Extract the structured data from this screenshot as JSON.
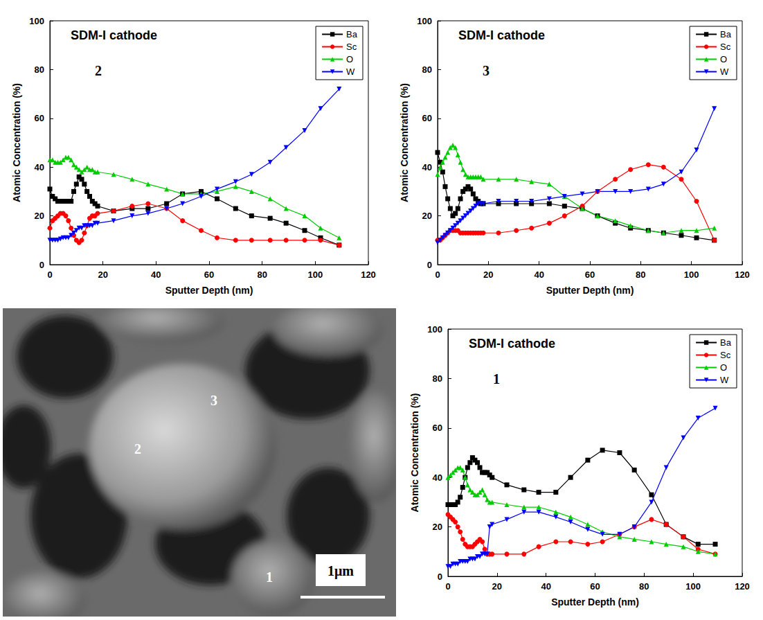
{
  "chart_data": [
    {
      "type": "line",
      "title": "SDM-I cathode",
      "annotation": "2",
      "x_label": "Sputter Depth (nm)",
      "y_label": "Atomic Concentration (%)",
      "xlim": [
        0,
        120
      ],
      "xticks": [
        0,
        20,
        40,
        60,
        80,
        100,
        120
      ],
      "ylim": [
        0,
        100
      ],
      "yticks": [
        0,
        20,
        40,
        60,
        80,
        100
      ],
      "grid": false,
      "legend": "upper right",
      "x": [
        0,
        1,
        2,
        3,
        4,
        5,
        6,
        7,
        8,
        9,
        10,
        11,
        12,
        13,
        14,
        15,
        16,
        17,
        18,
        24,
        31,
        37,
        44,
        50,
        57,
        63,
        70,
        76,
        83,
        89,
        96,
        102,
        109
      ],
      "series": [
        {
          "name": "Ba",
          "color": "#000000",
          "marker": "square",
          "values": [
            31,
            28,
            27,
            26,
            26,
            26,
            26,
            26,
            26,
            30,
            33,
            36,
            35,
            33,
            30,
            28,
            26,
            25,
            24,
            22,
            23,
            23,
            25,
            29,
            30,
            27,
            23,
            20,
            19,
            17,
            14,
            11,
            8
          ]
        },
        {
          "name": "Sc",
          "color": "#ff0000",
          "marker": "circle",
          "values": [
            15,
            18,
            19,
            20,
            21,
            21,
            20,
            18,
            15,
            12,
            10,
            9,
            10,
            13,
            16,
            19,
            20,
            20,
            21,
            22,
            24,
            25,
            23,
            18,
            14,
            11,
            10,
            10,
            10,
            10,
            10,
            10,
            8
          ]
        },
        {
          "name": "O",
          "color": "#00cc00",
          "marker": "triangle",
          "values": [
            43,
            43,
            42,
            42,
            42,
            43,
            44,
            44,
            43,
            41,
            40,
            39,
            38,
            39,
            40,
            39,
            39,
            38,
            38,
            37,
            35,
            33,
            31,
            29,
            29,
            30,
            32,
            30,
            27,
            23,
            20,
            15,
            11
          ]
        },
        {
          "name": "W",
          "color": "#0000ff",
          "marker": "triangle_down",
          "values": [
            10,
            10,
            10,
            10,
            10.5,
            11,
            11,
            11,
            12,
            13,
            14,
            15,
            15,
            16,
            16,
            16,
            16,
            17,
            17,
            18,
            20,
            21,
            23,
            25,
            28,
            31,
            34,
            37,
            42,
            48,
            55,
            64,
            72
          ]
        }
      ]
    },
    {
      "type": "line",
      "title": "SDM-I cathode",
      "annotation": "3",
      "x_label": "Sputter Depth (nm)",
      "y_label": "Atomic Concentration (%)",
      "xlim": [
        0,
        120
      ],
      "xticks": [
        0,
        20,
        40,
        60,
        80,
        100,
        120
      ],
      "ylim": [
        0,
        100
      ],
      "yticks": [
        0,
        20,
        40,
        60,
        80,
        100
      ],
      "grid": false,
      "legend": "upper right",
      "x": [
        0,
        1,
        2,
        3,
        4,
        5,
        6,
        7,
        8,
        9,
        10,
        11,
        12,
        13,
        14,
        15,
        16,
        17,
        18,
        24,
        31,
        37,
        44,
        50,
        57,
        63,
        70,
        76,
        83,
        89,
        96,
        102,
        109
      ],
      "series": [
        {
          "name": "Ba",
          "color": "#000000",
          "marker": "square",
          "values": [
            46,
            42,
            38,
            32,
            27,
            23,
            20,
            21,
            23,
            27,
            30,
            31,
            32,
            31,
            29,
            27,
            26,
            25,
            25,
            25,
            25,
            25,
            25,
            24,
            23,
            20,
            17,
            15,
            14,
            13,
            12,
            11,
            10
          ]
        },
        {
          "name": "Sc",
          "color": "#ff0000",
          "marker": "circle",
          "values": [
            10,
            10,
            11,
            12,
            13,
            14,
            14,
            14,
            14,
            13,
            13,
            13,
            13,
            13,
            13,
            13,
            13,
            13,
            13,
            13,
            14,
            15,
            17,
            20,
            24,
            30,
            35,
            39,
            41,
            40,
            35,
            26,
            10
          ]
        },
        {
          "name": "O",
          "color": "#00cc00",
          "marker": "triangle",
          "values": [
            37,
            40,
            42,
            44,
            46,
            48,
            49,
            48,
            45,
            42,
            39,
            37,
            36,
            36,
            36,
            36,
            36,
            36,
            35,
            35,
            35,
            34,
            33,
            28,
            23,
            20,
            18,
            16,
            14,
            13,
            14,
            14,
            15
          ]
        },
        {
          "name": "W",
          "color": "#0000ff",
          "marker": "triangle_down",
          "values": [
            9,
            10,
            11,
            12,
            13,
            14,
            15,
            16,
            17,
            18,
            19,
            20,
            21,
            22,
            23,
            24,
            25,
            25,
            25,
            26,
            26,
            26,
            27,
            28,
            29,
            30,
            30,
            30,
            31,
            33,
            38,
            47,
            64
          ]
        }
      ]
    },
    {
      "type": "line",
      "title": "SDM-I cathode",
      "annotation": "1",
      "x_label": "Sputter Depth (nm)",
      "y_label": "Atomic Concentration (%)",
      "xlim": [
        0,
        120
      ],
      "xticks": [
        0,
        20,
        40,
        60,
        80,
        100,
        120
      ],
      "ylim": [
        0,
        100
      ],
      "yticks": [
        0,
        20,
        40,
        60,
        80,
        100
      ],
      "grid": false,
      "legend": "upper right",
      "x": [
        0,
        1,
        2,
        3,
        4,
        5,
        6,
        7,
        8,
        9,
        10,
        11,
        12,
        13,
        14,
        15,
        16,
        17,
        18,
        24,
        31,
        37,
        44,
        50,
        57,
        63,
        70,
        76,
        83,
        89,
        96,
        102,
        109
      ],
      "series": [
        {
          "name": "Ba",
          "color": "#000000",
          "marker": "square",
          "values": [
            29,
            29,
            29,
            29,
            30,
            32,
            36,
            40,
            44,
            46,
            48,
            47,
            46,
            44,
            42,
            42,
            42,
            41,
            40,
            37,
            35,
            34,
            34,
            40,
            47,
            51,
            50,
            43,
            33,
            21,
            16,
            13,
            13
          ]
        },
        {
          "name": "Sc",
          "color": "#ff0000",
          "marker": "circle",
          "values": [
            25,
            24,
            23,
            22,
            20,
            18,
            15,
            13,
            12,
            12,
            12,
            13,
            14,
            15,
            14,
            11,
            9,
            9,
            9,
            9,
            9,
            12,
            14,
            14,
            13,
            14,
            17,
            20,
            23,
            21,
            16,
            11,
            9
          ]
        },
        {
          "name": "O",
          "color": "#00cc00",
          "marker": "triangle",
          "values": [
            40,
            41,
            42,
            43,
            44,
            44,
            43,
            40,
            37,
            35,
            34,
            33,
            33,
            34,
            35,
            33,
            31,
            30,
            30,
            29,
            28,
            28,
            26,
            24,
            21,
            18,
            16,
            15,
            14,
            13,
            12,
            10,
            9
          ]
        },
        {
          "name": "W",
          "color": "#0000ff",
          "marker": "triangle_down",
          "values": [
            4,
            4,
            5,
            5,
            5,
            6,
            6,
            6,
            6,
            7,
            7,
            7,
            8,
            8,
            9,
            9,
            9,
            20,
            21,
            23,
            26,
            26,
            24,
            22,
            19,
            17,
            17,
            20,
            30,
            44,
            56,
            64,
            68
          ]
        }
      ]
    }
  ],
  "micrograph": {
    "labels": [
      "2",
      "3",
      "1"
    ],
    "scale_bar": "1μm"
  }
}
